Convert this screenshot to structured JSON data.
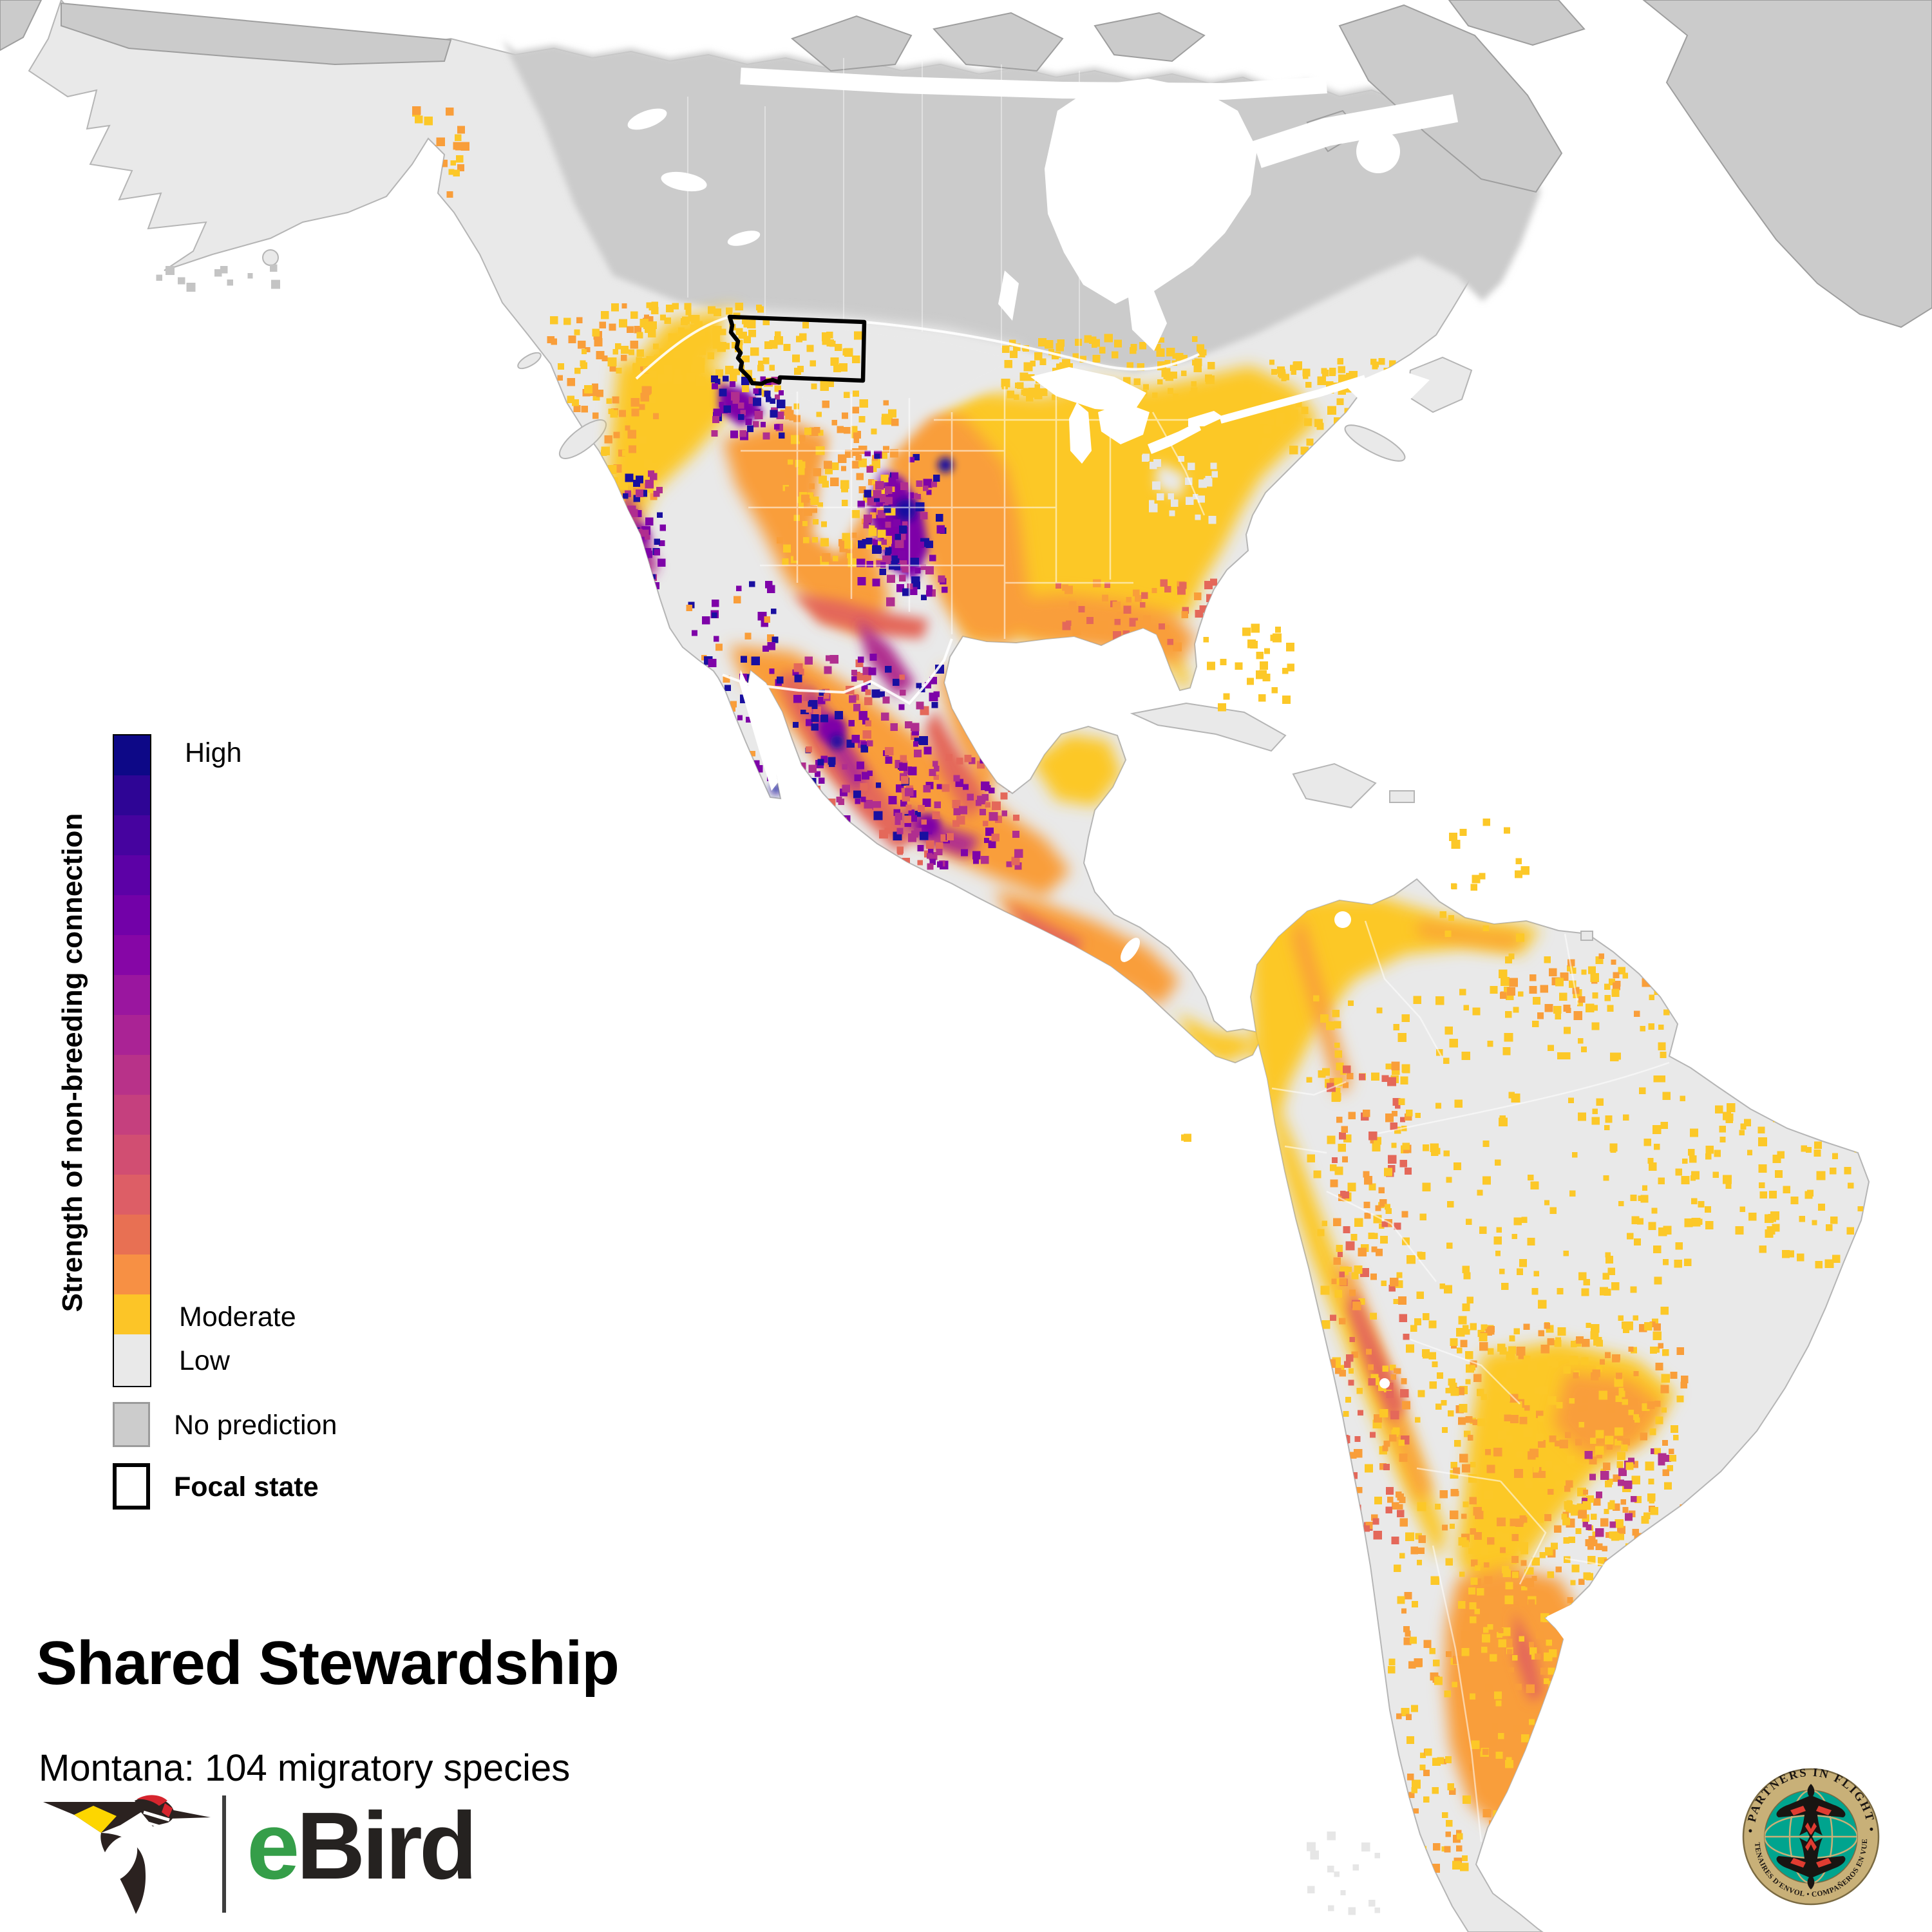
{
  "title": "Shared Stewardship",
  "subtitle": "Montana: 104 migratory species",
  "focal_state": "Montana",
  "species_count": "104",
  "legend": {
    "axis_label": "Strength of non-breeding connection",
    "high_label": "High",
    "moderate_label": "Moderate",
    "low_label": "Low",
    "no_prediction_label": "No prediction",
    "focal_state_label": "Focal state",
    "colorbar": [
      "#0d0887",
      "#2e0595",
      "#46039f",
      "#5c01a6",
      "#7201a8",
      "#8606a6",
      "#9a169f",
      "#aa2395",
      "#b83289",
      "#c5407e",
      "#d14e72",
      "#dd5e66",
      "#e87053",
      "#f79044",
      "#fcc527"
    ],
    "low_color": "#e9e9e9",
    "no_prediction_color": "#cccccc",
    "focal_outline_color": "#000000"
  },
  "map": {
    "ocean_color": "#ffffff",
    "land_low_color": "#e9e9e9",
    "no_prediction_color": "#cbcbcb",
    "coast_stroke": "#b5b5b5",
    "no_prediction_stroke": "#9e9e9e",
    "border_color": "#ffffff",
    "palette": {
      "gold": "#fcc828",
      "amber": "#f99e3a",
      "deep": "#e4685a",
      "magenta": "#b02e8f",
      "purple": "#7e03a8",
      "navy": "#190fa0",
      "low": "#e6e6e6",
      "nopred": "#c4c4c4"
    }
  },
  "logos": {
    "ebird": {
      "e": "e",
      "bird": "Bird",
      "e_color": "#359e49",
      "bird_color": "#252220",
      "body_color": "#2b2220",
      "wing_yellow": "#fdd600",
      "crown_red": "#d6252e"
    },
    "pif": {
      "ring_text_top": "• PARTNERS IN FLIGHT •",
      "ring_text_bottom": "PARTENAIRES D'ENVOL • COMPAÑEROS EN VUELO",
      "ring_color": "#c8b078",
      "ring_edge_color": "#7a6a42",
      "globe_color": "#00a48e",
      "bird_color": "#181512",
      "accent_red": "#e03c31"
    }
  }
}
